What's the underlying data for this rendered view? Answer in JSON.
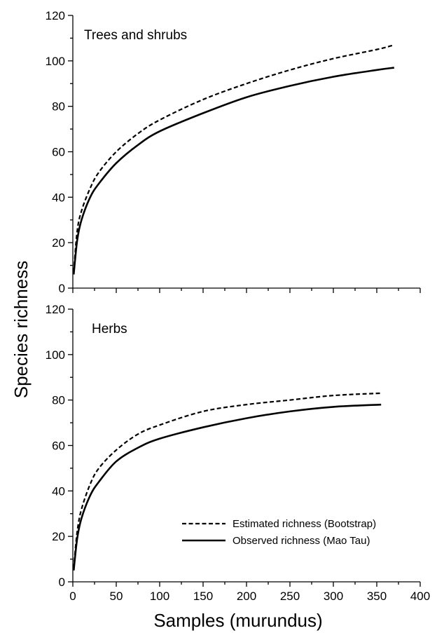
{
  "chart_data": [
    {
      "type": "line",
      "panel_label": "Trees and shrubs",
      "xlim": [
        0,
        400
      ],
      "ylim": [
        0,
        120
      ],
      "yticks": [
        "0",
        "20",
        "40",
        "60",
        "80",
        "100",
        "120"
      ],
      "series": [
        {
          "style": "dashed",
          "x": [
            1,
            5,
            10,
            20,
            30,
            50,
            75,
            100,
            150,
            200,
            250,
            300,
            350,
            370
          ],
          "y": [
            7,
            25,
            34,
            44,
            51,
            60,
            68,
            74,
            83,
            90,
            96,
            101,
            105,
            107
          ]
        },
        {
          "style": "solid",
          "x": [
            1,
            5,
            10,
            20,
            30,
            50,
            75,
            100,
            150,
            200,
            250,
            300,
            350,
            370
          ],
          "y": [
            6,
            21,
            30,
            40,
            46,
            55,
            63,
            69,
            77,
            84,
            89,
            93,
            96,
            97
          ]
        }
      ]
    },
    {
      "type": "line",
      "panel_label": "Herbs",
      "xlim": [
        0,
        400
      ],
      "ylim": [
        0,
        120
      ],
      "xlabel": "Samples (murundus)",
      "xticks": [
        "0",
        "50",
        "100",
        "150",
        "200",
        "250",
        "300",
        "350",
        "400"
      ],
      "yticks": [
        "0",
        "20",
        "40",
        "60",
        "80",
        "100",
        "120"
      ],
      "legend": {
        "position": "bottom-right",
        "entries": [
          {
            "name": "Estimated richness (Bootstrap)",
            "style": "dashed"
          },
          {
            "name": "Observed richness (Mao Tau)",
            "style": "solid"
          }
        ]
      },
      "series": [
        {
          "name": "Estimated richness (Bootstrap)",
          "style": "dashed",
          "x": [
            1,
            5,
            10,
            20,
            30,
            50,
            75,
            100,
            150,
            200,
            250,
            300,
            355
          ],
          "y": [
            6,
            22,
            32,
            43,
            50,
            58,
            65,
            69,
            75,
            78,
            80,
            82,
            83
          ]
        },
        {
          "name": "Observed richness (Mao Tau)",
          "style": "solid",
          "x": [
            1,
            5,
            10,
            20,
            30,
            50,
            75,
            100,
            150,
            200,
            250,
            300,
            355
          ],
          "y": [
            5,
            19,
            28,
            38,
            44,
            53,
            59,
            63,
            68,
            72,
            75,
            77,
            78
          ]
        }
      ]
    }
  ],
  "shared_ylabel": "Species richness"
}
